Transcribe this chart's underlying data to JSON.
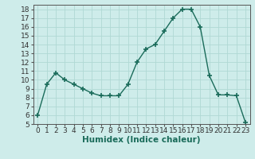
{
  "x": [
    0,
    1,
    2,
    3,
    4,
    5,
    6,
    7,
    8,
    9,
    10,
    11,
    12,
    13,
    14,
    15,
    16,
    17,
    18,
    19,
    20,
    21,
    22,
    23
  ],
  "y": [
    6.0,
    9.5,
    10.8,
    10.0,
    9.5,
    9.0,
    8.5,
    8.2,
    8.2,
    8.2,
    9.5,
    12.0,
    13.5,
    14.0,
    15.5,
    17.0,
    18.0,
    18.0,
    16.0,
    10.5,
    8.3,
    8.3,
    8.2,
    5.2
  ],
  "line_color": "#1a6b5a",
  "marker": "+",
  "marker_size": 4,
  "bg_color": "#ceecea",
  "grid_color": "#b0d8d4",
  "xlabel": "Humidex (Indice chaleur)",
  "ylim": [
    5,
    18.5
  ],
  "xlim": [
    -0.5,
    23.5
  ],
  "yticks": [
    5,
    6,
    7,
    8,
    9,
    10,
    11,
    12,
    13,
    14,
    15,
    16,
    17,
    18
  ],
  "xticks": [
    0,
    1,
    2,
    3,
    4,
    5,
    6,
    7,
    8,
    9,
    10,
    11,
    12,
    13,
    14,
    15,
    16,
    17,
    18,
    19,
    20,
    21,
    22,
    23
  ],
  "font_size": 6.5,
  "xlabel_fontsize": 7.5
}
